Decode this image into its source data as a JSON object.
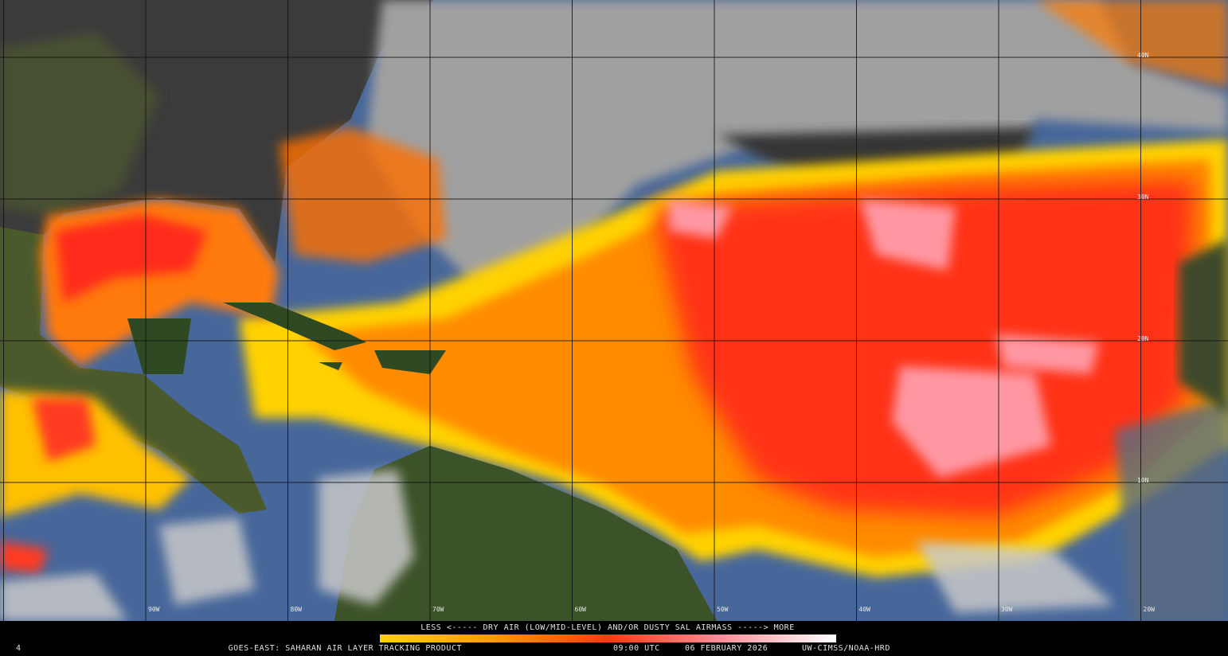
{
  "map": {
    "lon_labels": [
      "90W",
      "80W",
      "70W",
      "60W",
      "50W",
      "40W",
      "30W",
      "20W"
    ],
    "lat_labels": [
      "40N",
      "30N",
      "20N",
      "10N"
    ]
  },
  "legend": {
    "caption": "LESS <----- DRY AIR (LOW/MID-LEVEL) AND/OR DUSTY SAL AIRMASS -----> MORE",
    "corner_mark": "4"
  },
  "footer": {
    "product": "GOES-EAST: SAHARAN AIR LAYER TRACKING PRODUCT",
    "time": "09:00 UTC",
    "date": "06 FEBRUARY 2026",
    "credit": "UW-CIMSS/NOAA-HRD"
  }
}
